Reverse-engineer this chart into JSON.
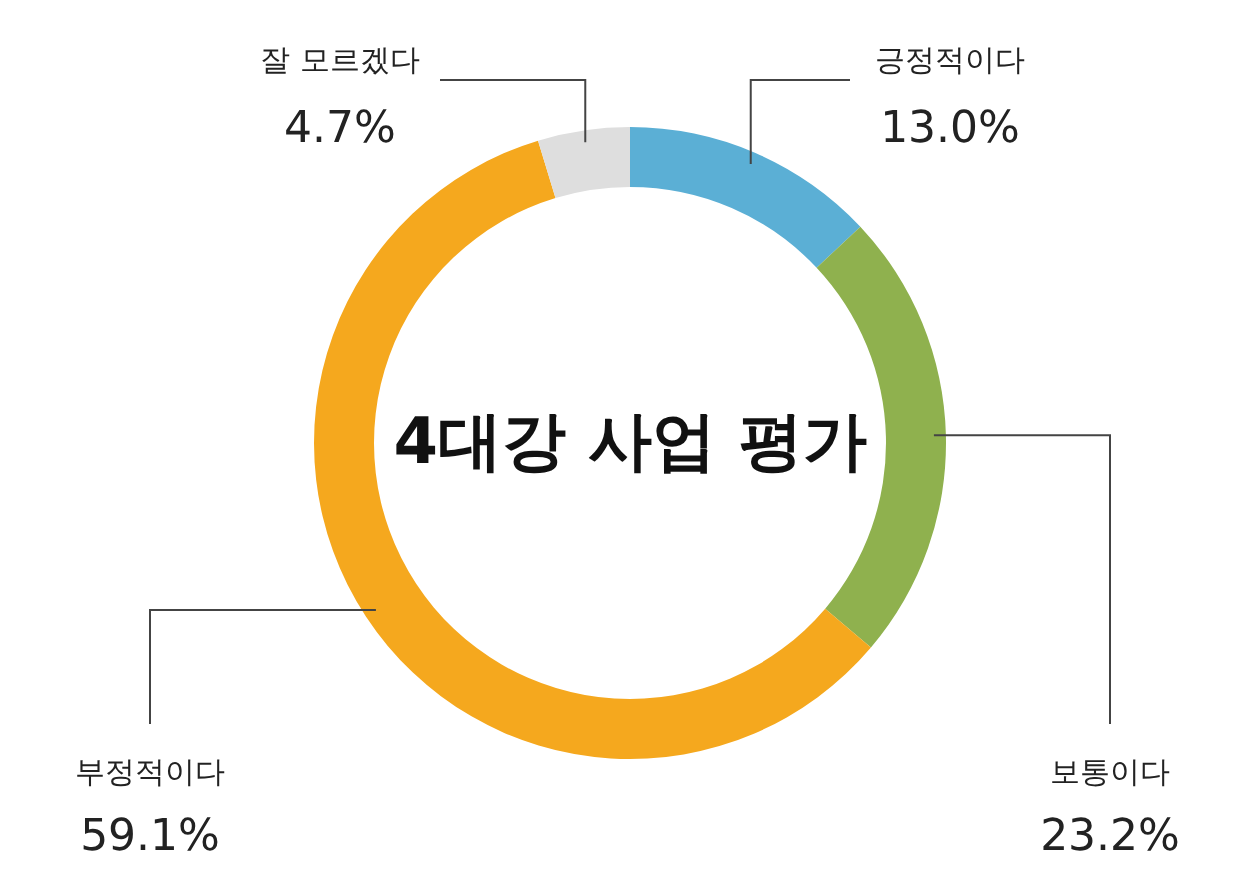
{
  "chart_data": {
    "type": "donut",
    "title": "4대강 사업 평가",
    "categories": [
      "긍정적이다",
      "보통이다",
      "부정적이다",
      "잘 모르겠다"
    ],
    "values": [
      13.0,
      23.2,
      59.1,
      4.7
    ],
    "value_labels": [
      "13.0%",
      "23.2%",
      "59.1%",
      "4.7%"
    ],
    "colors": [
      "#5bafd5",
      "#8fb14e",
      "#f5a81e",
      "#dedede"
    ]
  }
}
